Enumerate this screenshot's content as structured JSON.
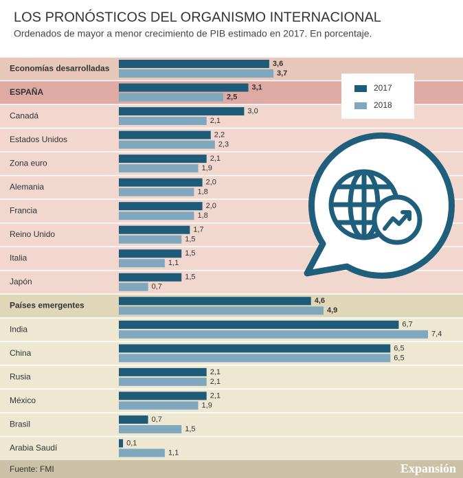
{
  "chart_data": {
    "type": "hbar",
    "title": "LOS PRONÓSTICOS DEL ORGANISMO INTERNACIONAL",
    "subtitle": "Ordenados de mayor a menor crecimiento de PIB estimado en 2017. En porcentaje.",
    "categories": [
      "Economías desarrolladas",
      "ESPAÑA",
      "Canadá",
      "Estados Unidos",
      "Zona euro",
      "Alemania",
      "Francia",
      "Reino Unido",
      "Italia",
      "Japón",
      "Países emergentes",
      "India",
      "China",
      "Rusia",
      "México",
      "Brasil",
      "Arabia Saudí"
    ],
    "emphasis": [
      true,
      true,
      false,
      false,
      false,
      false,
      false,
      false,
      false,
      false,
      true,
      false,
      false,
      false,
      false,
      false,
      false
    ],
    "row_colors": [
      "#e8c7bb",
      "#dfaaa4",
      "#f1d7cd",
      "#f1d7cd",
      "#f1d7cd",
      "#f1d7cd",
      "#f1d7cd",
      "#f1d7cd",
      "#f1d7cd",
      "#f1d7cd",
      "#e0d7b9",
      "#eee8d3",
      "#eee8d3",
      "#eee8d3",
      "#eee8d3",
      "#eee8d3",
      "#eee8d3"
    ],
    "series": [
      {
        "name": "2017",
        "color": "#1d5b78",
        "values": [
          3.6,
          3.1,
          3.0,
          2.2,
          2.1,
          2.0,
          2.0,
          1.7,
          1.5,
          1.5,
          4.6,
          6.7,
          6.5,
          2.1,
          2.1,
          0.7,
          0.1
        ],
        "value_labels": [
          "3,6",
          "3,1",
          "3,0",
          "2,2",
          "2,1",
          "2,0",
          "2,0",
          "1,7",
          "1,5",
          "1,5",
          "4,6",
          "6,7",
          "6,5",
          "2,1",
          "2,1",
          "0,7",
          "0,1"
        ]
      },
      {
        "name": "2018",
        "color": "#7fa8bf",
        "values": [
          3.7,
          2.5,
          2.1,
          2.3,
          1.9,
          1.8,
          1.8,
          1.5,
          1.1,
          0.7,
          4.9,
          7.4,
          6.5,
          2.1,
          1.9,
          1.5,
          1.1
        ],
        "value_labels": [
          "3,7",
          "2,5",
          "2,1",
          "2,3",
          "1,9",
          "1,8",
          "1,8",
          "1,5",
          "1,1",
          "0,7",
          "4,9",
          "7,4",
          "6,5",
          "2,1",
          "1,9",
          "1,5",
          "1,1"
        ]
      }
    ],
    "source": "Fuente: FMI",
    "brand": "Expansión"
  }
}
